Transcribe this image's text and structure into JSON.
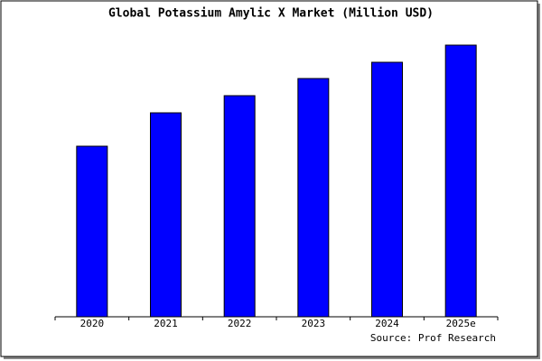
{
  "chart_data": {
    "type": "bar",
    "title": "Global Potassium Amylic X Market (Million USD)",
    "categories": [
      "2020",
      "2021",
      "2022",
      "2023",
      "2024",
      "2025e"
    ],
    "values": [
      189,
      226,
      245,
      264,
      282,
      301
    ],
    "color": "#0000ff",
    "ylim": [
      0,
      301
    ],
    "source": "Source: Prof Research"
  }
}
